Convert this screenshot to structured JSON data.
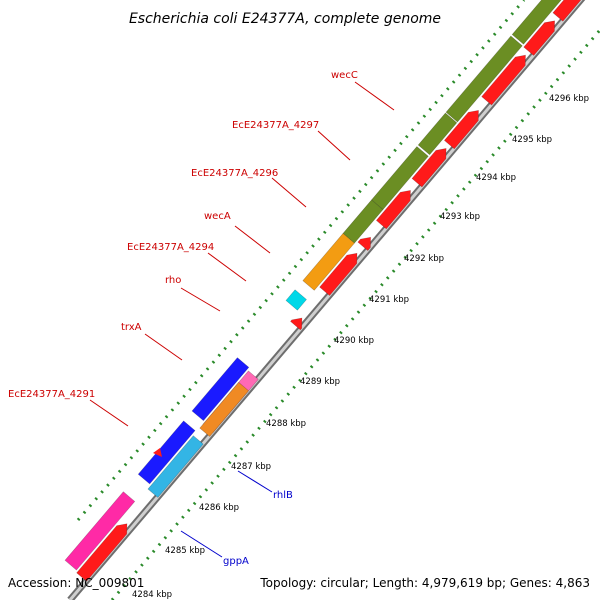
{
  "title": "Escherichia coli E24377A, complete genome",
  "footer": {
    "accession": "Accession: NC_009801",
    "summary": "Topology: circular; Length: 4,979,619 bp; Genes: 4,863"
  },
  "colors": {
    "backbone": "#8c8c8c",
    "tick": "#2a8a2a",
    "red_label": "#cc0000",
    "blue_label": "#0000cc"
  },
  "ticks": [
    "4284 kbp",
    "4285 kbp",
    "4286 kbp",
    "4287 kbp",
    "4288 kbp",
    "4289 kbp",
    "4290 kbp",
    "4291 kbp",
    "4292 kbp",
    "4293 kbp",
    "4294 kbp",
    "4295 kbp",
    "4296 kbp"
  ],
  "gene_labels": [
    {
      "text": "wecC",
      "color": "red"
    },
    {
      "text": "EcE24377A_4297",
      "color": "red"
    },
    {
      "text": "EcE24377A_4296",
      "color": "red"
    },
    {
      "text": "wecA",
      "color": "red"
    },
    {
      "text": "EcE24377A_4294",
      "color": "red"
    },
    {
      "text": "rho",
      "color": "red"
    },
    {
      "text": "trxA",
      "color": "red"
    },
    {
      "text": "EcE24377A_4291",
      "color": "red"
    },
    {
      "text": "rhlB",
      "color": "blue"
    },
    {
      "text": "gppA",
      "color": "blue"
    }
  ]
}
